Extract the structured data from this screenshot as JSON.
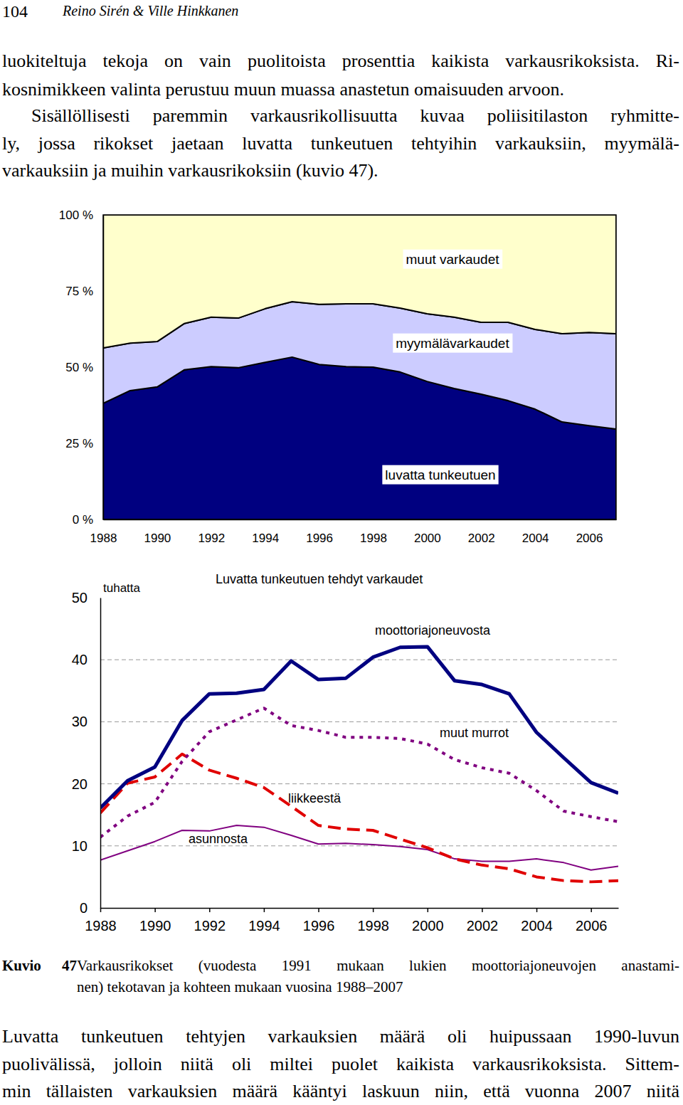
{
  "header": {
    "page": "104",
    "authors": "Reino Sirén & Ville Hinkkanen"
  },
  "paragraphs": [
    {
      "lines": [
        "luokiteltuja tekoja on vain puolitoista prosenttia kaikista varkausrikoksista. Ri-",
        "kosnimikkeen valinta perustuu muun muassa anastetun omaisuuden arvoon."
      ]
    },
    {
      "lines": [
        "Sisällöllisesti paremmin varkausrikollisuutta kuvaa poliisitilaston ryhmitte-",
        "ly, jossa rikokset jaetaan luvatta tunkeutuen tehtyihin varkauksiin, myymälä-",
        "varkauksiin ja muihin varkausrikoksiin (kuvio 47)."
      ]
    },
    {
      "lines": [
        "Luvatta tunkeutuen tehtyjen varkauksien määrä oli huipussaan 1990-luvun",
        "puolivälissä, jolloin niitä oli miltei puolet kaikista varkausrikoksista. Sittem-",
        "min tällaisten varkauksien määrä kääntyi laskuun niin, että vuonna 2007 niitä"
      ]
    }
  ],
  "caption": {
    "label": "Kuvio 47",
    "lines": [
      "Varkausrikokset (vuodesta 1991 mukaan lukien moottoriajoneuvojen anastami-",
      "nen) tekotavan ja kohteen mukaan vuosina 1988–2007"
    ]
  },
  "chart_data": [
    {
      "type": "area",
      "stacked": true,
      "x": [
        1988,
        1989,
        1990,
        1991,
        1992,
        1993,
        1994,
        1995,
        1996,
        1997,
        1998,
        1999,
        2000,
        2001,
        2002,
        2003,
        2004,
        2005,
        2006,
        2007
      ],
      "series": [
        {
          "name": "luvatta tunkeutuen",
          "color": "#000080",
          "values": [
            38.1,
            42.3,
            43.5,
            49.1,
            50.2,
            49.8,
            51.6,
            53.3,
            50.9,
            50.2,
            50.0,
            48.4,
            45.3,
            43.0,
            41.1,
            39.0,
            36.2,
            32.0,
            30.8,
            29.7
          ]
        },
        {
          "name": "myymälävarkaudet",
          "color": "#ccccff",
          "values": [
            18.2,
            15.6,
            14.9,
            15.2,
            16.2,
            16.3,
            17.6,
            18.2,
            19.7,
            20.6,
            20.8,
            21.0,
            22.2,
            23.4,
            23.6,
            25.7,
            26.2,
            29.0,
            30.6,
            31.3
          ]
        },
        {
          "name": "muut varkaudet",
          "color": "#ffffcc",
          "values": [
            43.7,
            42.1,
            41.6,
            35.7,
            33.6,
            33.9,
            30.8,
            28.5,
            29.4,
            29.2,
            29.2,
            30.6,
            32.5,
            33.6,
            35.3,
            35.3,
            37.6,
            39.0,
            38.6,
            39.0
          ]
        }
      ],
      "xlim": [
        1988,
        2007
      ],
      "xticks": [
        1988,
        1990,
        1992,
        1994,
        1996,
        1998,
        2000,
        2002,
        2004,
        2006
      ],
      "ylim": [
        0,
        100
      ],
      "yticks": [
        {
          "value": 0,
          "label": "0 %"
        },
        {
          "value": 25,
          "label": "25 %"
        },
        {
          "value": 50,
          "label": "50 %"
        },
        {
          "value": 75,
          "label": "75 %"
        },
        {
          "value": 100,
          "label": "100 %"
        }
      ]
    },
    {
      "type": "line",
      "title": "Luvatta tunkeutuen tehdyt varkaudet",
      "y_label": "tuhatta",
      "x": [
        1988,
        1989,
        1990,
        1991,
        1992,
        1993,
        1994,
        1995,
        1996,
        1997,
        1998,
        1999,
        2000,
        2001,
        2002,
        2003,
        2004,
        2005,
        2006,
        2007
      ],
      "series": [
        {
          "name": "moottoriajoneuvosta",
          "color": "#000080",
          "line_style": "solid",
          "values": [
            16.1,
            20.5,
            22.7,
            30.2,
            34.5,
            34.6,
            35.2,
            39.8,
            36.8,
            37.0,
            40.4,
            42.0,
            42.1,
            36.6,
            36.0,
            34.5,
            28.3,
            24.2,
            20.2,
            18.5
          ]
        },
        {
          "name": "muut murrot",
          "color": "#800080",
          "line_style": "dotted",
          "values": [
            11.4,
            14.8,
            17.0,
            23.6,
            28.4,
            30.3,
            32.2,
            29.4,
            28.6,
            27.5,
            27.5,
            27.3,
            26.4,
            23.9,
            22.6,
            21.7,
            18.9,
            15.6,
            14.7,
            13.9
          ]
        },
        {
          "name": "liikkeestä",
          "color": "#e00000",
          "line_style": "dashed",
          "values": [
            15.3,
            20.1,
            21.1,
            24.8,
            22.2,
            20.9,
            19.4,
            16.4,
            13.3,
            12.7,
            12.5,
            11.1,
            9.7,
            7.9,
            6.9,
            6.3,
            5.0,
            4.4,
            4.2,
            4.4
          ]
        },
        {
          "name": "asunnosta",
          "color": "#800080",
          "line_style": "solid",
          "values": [
            7.7,
            9.2,
            10.7,
            12.5,
            12.4,
            13.3,
            13.0,
            11.7,
            10.3,
            10.4,
            10.2,
            9.9,
            9.4,
            7.9,
            7.5,
            7.5,
            7.9,
            7.3,
            6.1,
            6.7
          ]
        }
      ],
      "xlim": [
        1988,
        2007
      ],
      "xticks": [
        1988,
        1990,
        1992,
        1994,
        1996,
        1998,
        2000,
        2002,
        2004,
        2006
      ],
      "ylim": [
        0,
        50
      ],
      "yticks": [
        0,
        10,
        20,
        30,
        40,
        50
      ],
      "grid": true
    }
  ]
}
